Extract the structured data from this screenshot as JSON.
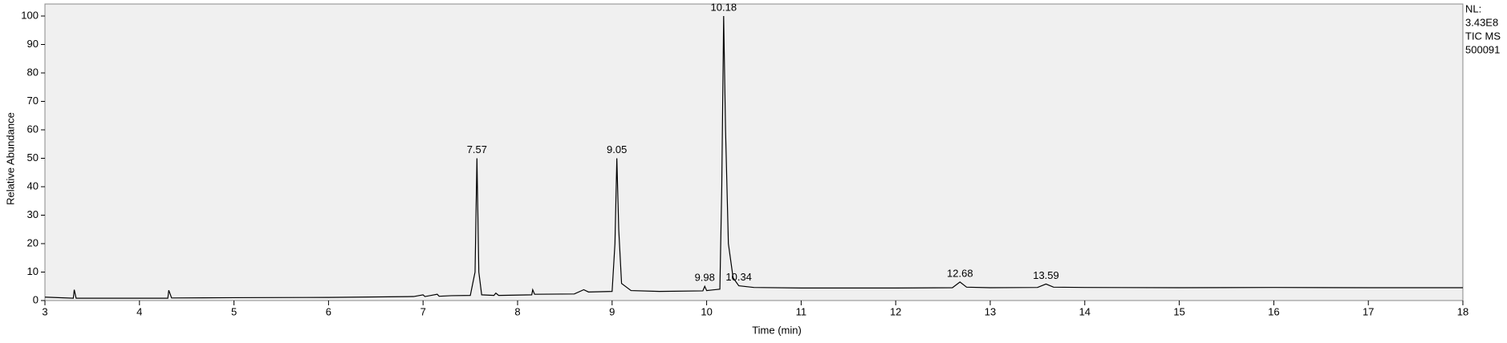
{
  "chart_data": {
    "type": "line",
    "xlabel": "Time (min)",
    "ylabel": "Relative Abundance",
    "x": [
      3.0,
      3.3,
      3.31,
      3.33,
      4.3,
      4.31,
      4.34,
      5.0,
      6.0,
      6.9,
      7.0,
      7.02,
      7.15,
      7.17,
      7.3,
      7.5,
      7.55,
      7.57,
      7.59,
      7.62,
      7.75,
      7.77,
      7.8,
      8.15,
      8.16,
      8.18,
      8.6,
      8.7,
      8.75,
      9.0,
      9.03,
      9.05,
      9.07,
      9.1,
      9.2,
      9.5,
      9.96,
      9.98,
      10.0,
      10.14,
      10.16,
      10.18,
      10.2,
      10.23,
      10.28,
      10.34,
      10.5,
      11,
      12,
      12.6,
      12.68,
      12.75,
      13,
      13.5,
      13.59,
      13.67,
      14,
      15,
      16,
      17,
      18
    ],
    "series": [
      {
        "name": "TIC MS",
        "color": "#000000",
        "values": [
          1.2,
          0.8,
          3.8,
          0.8,
          0.8,
          3.6,
          0.9,
          1.0,
          1.1,
          1.4,
          2.0,
          1.4,
          2.2,
          1.5,
          1.7,
          1.8,
          10,
          50,
          10,
          2,
          1.8,
          2.6,
          1.8,
          2.0,
          3.8,
          2.2,
          2.3,
          3.8,
          3.0,
          3.2,
          20,
          50,
          25,
          6,
          3.5,
          3.2,
          3.4,
          5,
          3.5,
          4,
          40,
          100,
          60,
          20,
          8,
          5.2,
          4.6,
          4.4,
          4.4,
          4.5,
          6.5,
          4.7,
          4.5,
          4.6,
          5.8,
          4.7,
          4.6,
          4.5,
          4.6,
          4.5,
          4.5
        ]
      }
    ],
    "annotations": [
      {
        "text": "7.57",
        "x": 7.57,
        "y": 50
      },
      {
        "text": "9.05",
        "x": 9.05,
        "y": 50
      },
      {
        "text": "9.98",
        "x": 9.98,
        "y": 5
      },
      {
        "text": "10.18",
        "x": 10.18,
        "y": 100
      },
      {
        "text": "10.34",
        "x": 10.34,
        "y": 5.2
      },
      {
        "text": "12.68",
        "x": 12.68,
        "y": 6.5
      },
      {
        "text": "13.59",
        "x": 13.59,
        "y": 5.8
      }
    ],
    "side_labels": [
      "NL:",
      "3.43E8",
      "TIC  MS",
      "500091"
    ],
    "xlim": [
      3,
      18
    ],
    "xticks": [
      3,
      4,
      5,
      6,
      7,
      8,
      9,
      10,
      11,
      12,
      13,
      14,
      15,
      16,
      17,
      18
    ],
    "ylim": [
      0,
      100
    ],
    "yticks": [
      0,
      10,
      20,
      30,
      40,
      50,
      60,
      70,
      80,
      90,
      100
    ]
  }
}
